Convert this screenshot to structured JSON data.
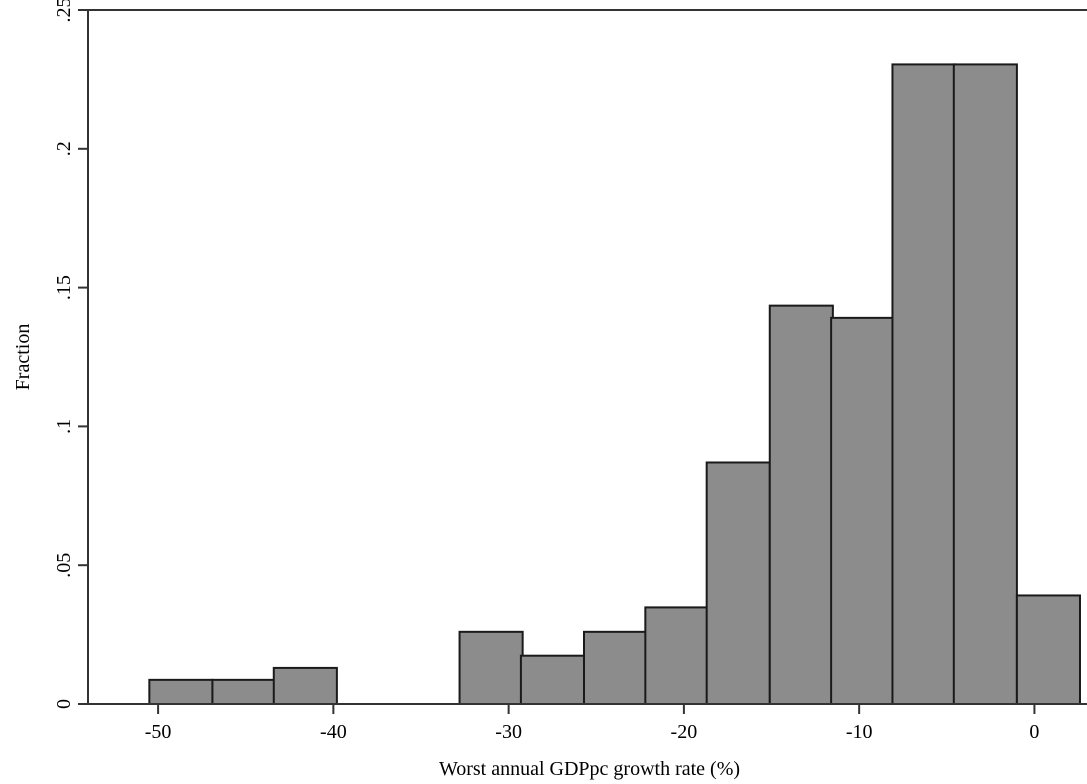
{
  "chart_data": {
    "type": "bar",
    "xlabel": "Worst annual GDPpc growth rate (%)",
    "ylabel": "Fraction",
    "xlim": [
      -54,
      3
    ],
    "ylim": [
      0,
      0.25
    ],
    "bin_width": 3.6,
    "bins": [
      {
        "start": -50.5,
        "value": 0.0087
      },
      {
        "start": -46.9,
        "value": 0.0087
      },
      {
        "start": -43.4,
        "value": 0.013
      },
      {
        "start": -32.8,
        "value": 0.026
      },
      {
        "start": -29.3,
        "value": 0.0174
      },
      {
        "start": -25.7,
        "value": 0.026
      },
      {
        "start": -22.2,
        "value": 0.0348
      },
      {
        "start": -18.7,
        "value": 0.087
      },
      {
        "start": -15.1,
        "value": 0.1435
      },
      {
        "start": -11.6,
        "value": 0.1391
      },
      {
        "start": -8.1,
        "value": 0.2304
      },
      {
        "start": -4.6,
        "value": 0.2304
      },
      {
        "start": -1.0,
        "value": 0.0391
      }
    ],
    "x_ticks": [
      {
        "value": -50,
        "label": "-50"
      },
      {
        "value": -40,
        "label": "-40"
      },
      {
        "value": -30,
        "label": "-30"
      },
      {
        "value": -20,
        "label": "-20"
      },
      {
        "value": -10,
        "label": "-10"
      },
      {
        "value": 0,
        "label": "0"
      }
    ],
    "y_ticks": [
      {
        "value": 0,
        "label": "0"
      },
      {
        "value": 0.05,
        "label": ".05"
      },
      {
        "value": 0.1,
        "label": ".1"
      },
      {
        "value": 0.15,
        "label": ".15"
      },
      {
        "value": 0.2,
        "label": ".2"
      },
      {
        "value": 0.25,
        "label": ".25"
      }
    ],
    "grid": false,
    "colors": {
      "bar_fill": "#8c8c8c",
      "bar_stroke": "#1a1a1a",
      "axis": "#333333"
    }
  }
}
